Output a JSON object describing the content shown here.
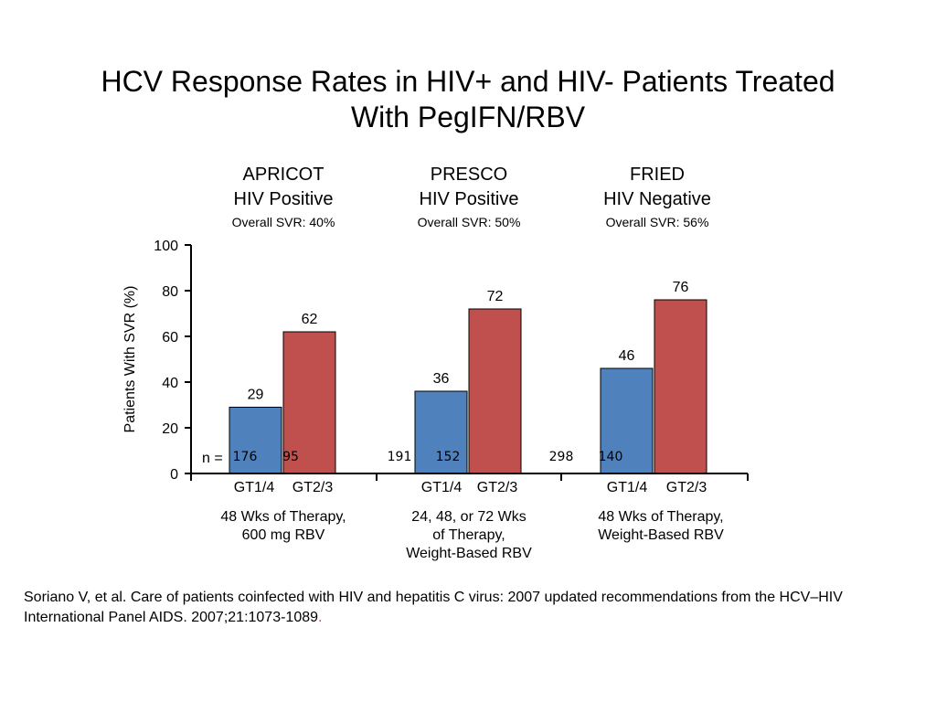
{
  "title_line1": "HCV Response Rates in HIV+ and HIV- Patients Treated",
  "title_line2": "With PegIFN/RBV",
  "groups": [
    {
      "study": "APRICOT",
      "population": "HIV Positive",
      "overall": "Overall SVR: 40%",
      "note_lines": [
        "48 Wks of Therapy,",
        "600 mg RBV"
      ]
    },
    {
      "study": "PRESCO",
      "population": "HIV Positive",
      "overall": "Overall SVR: 50%",
      "note_lines": [
        "24, 48, or 72 Wks",
        "of Therapy,",
        "Weight-Based RBV"
      ]
    },
    {
      "study": "FRIED",
      "population": "HIV Negative",
      "overall": "Overall SVR: 56%",
      "note_lines": [
        "48 Wks of Therapy,",
        "Weight-Based RBV"
      ]
    }
  ],
  "chart_data": {
    "type": "bar",
    "ylabel": "Patients With SVR (%)",
    "ylim": [
      0,
      100
    ],
    "yticks": [
      0,
      20,
      40,
      60,
      80,
      100
    ],
    "grid": false,
    "n_prefix": "n =",
    "groups": [
      "APRICOT",
      "PRESCO",
      "FRIED"
    ],
    "bars": [
      {
        "group": "APRICOT",
        "label": "GT1/4",
        "value": 29,
        "n": "176",
        "color": "#4f81bd"
      },
      {
        "group": "APRICOT",
        "label": "GT2/3",
        "value": 62,
        "n": "95",
        "color": "#c0504d"
      },
      {
        "group": "PRESCO",
        "label": "GT1/4",
        "value": 36,
        "n": "191",
        "color": "#4f81bd"
      },
      {
        "group": "PRESCO",
        "label": "GT2/3",
        "value": 72,
        "n": "152",
        "color": "#c0504d"
      },
      {
        "group": "FRIED",
        "label": "GT1/4",
        "value": 46,
        "n": "298",
        "color": "#4f81bd"
      },
      {
        "group": "FRIED",
        "label": "GT2/3",
        "value": 76,
        "n": "140",
        "color": "#c0504d"
      }
    ]
  },
  "citation_text": "Soriano V, et al. Care of patients coinfected with HIV and hepatitis C virus: 2007 updated recommendations from the HCV–HIV International Panel AIDS. 2007;21:1073-1089",
  "citation_end": "."
}
